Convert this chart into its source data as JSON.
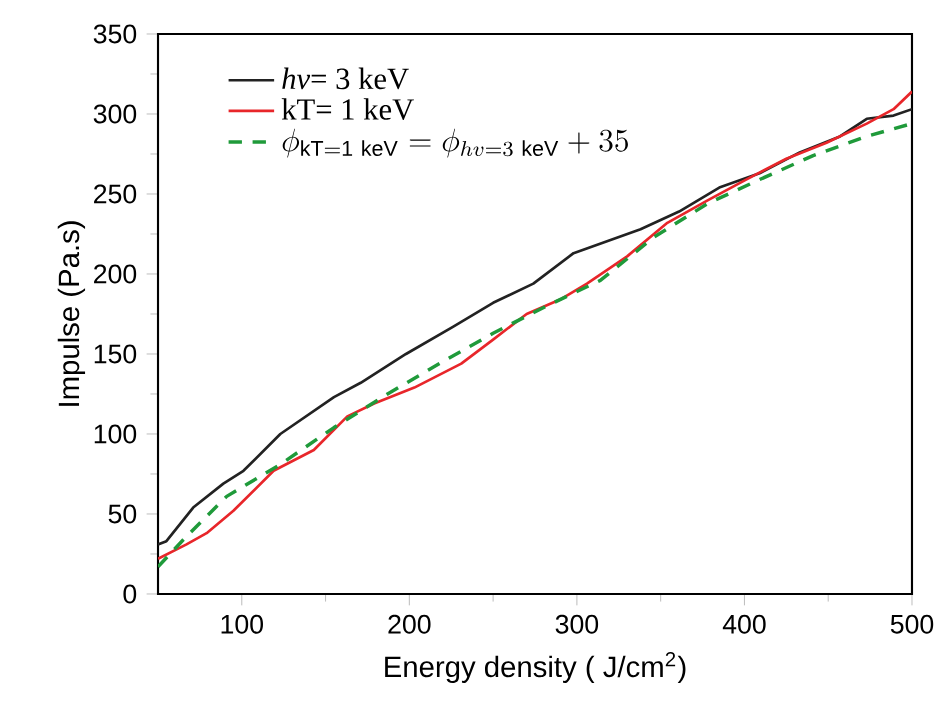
{
  "chart_data": {
    "type": "line",
    "xlabel": "Energy density ( J/cm$^{2}$)",
    "ylabel": "Impulse (Pa.s)",
    "xlim": [
      50,
      500
    ],
    "ylim": [
      0,
      350
    ],
    "xticks": [
      100,
      200,
      300,
      400,
      500
    ],
    "yticks": [
      0,
      50,
      100,
      150,
      200,
      250,
      300,
      350
    ],
    "grid": false,
    "legend": "top left",
    "marker": "none",
    "series": [
      {
        "name": "*hv*= 3  keV",
        "color": "#222222",
        "line_style": "solid",
        "x": [
          50,
          55,
          71,
          89,
          101,
          123,
          155,
          171,
          198,
          226,
          250,
          274,
          298,
          314,
          338,
          361,
          385,
          409,
          433,
          457,
          473,
          489,
          500
        ],
        "values": [
          31,
          33,
          54,
          69,
          77,
          100,
          123,
          132,
          150,
          167,
          182,
          194,
          213,
          219,
          228,
          239,
          254,
          263,
          276,
          286,
          297,
          299,
          303
        ]
      },
      {
        "name": "kT= 1  keV",
        "color": "#e8262a",
        "line_style": "solid",
        "x": [
          50,
          67,
          79,
          95,
          119,
          143,
          163,
          179,
          203,
          231,
          250,
          270,
          290,
          306,
          330,
          354,
          378,
          401,
          425,
          449,
          473,
          489,
          500
        ],
        "values": [
          22,
          31,
          38,
          52,
          77,
          90,
          111,
          119,
          129,
          144,
          159,
          175,
          184,
          194,
          211,
          232,
          246,
          259,
          272,
          282,
          294,
          303,
          314
        ]
      },
      {
        "name": "\\phi_{\\mathrm{kT=1\\ keV}}=\\phi_{hv=3\\ \\mathrm{keV}}+35",
        "color": "#1f9a3a",
        "line_style": "dashed",
        "x": [
          50,
          67,
          91,
          123,
          155,
          187,
          218,
          250,
          282,
          314,
          346,
          378,
          409,
          441,
          473,
          500
        ],
        "values": [
          17,
          36,
          61,
          81,
          104,
          125,
          144,
          163,
          180,
          196,
          223,
          244,
          259,
          274,
          286,
          294
        ]
      }
    ]
  }
}
